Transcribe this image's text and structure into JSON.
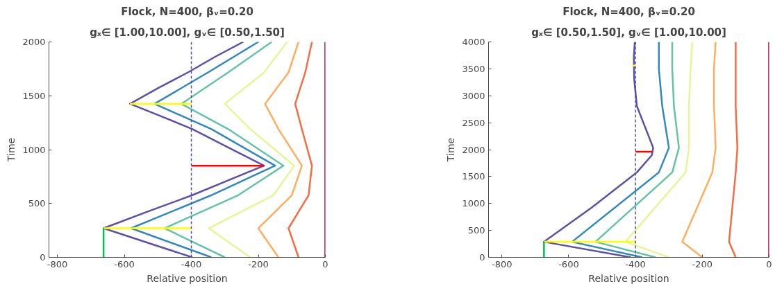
{
  "chart_data": [
    {
      "type": "line",
      "title": "Flock, N=400, βᵥ=0.20",
      "subtitle": "gₓ∈ [1.00,10.00], gᵥ∈ [0.50,1.50]",
      "xlabel": "Relative position",
      "ylabel": "Time",
      "xlim": [
        -825,
        0
      ],
      "ylim": [
        0,
        2000
      ],
      "xticks": [
        -800,
        -600,
        -400,
        -200,
        0
      ],
      "yticks": [
        0,
        500,
        1000,
        1500,
        2000
      ],
      "grid": false,
      "line_style": "solid",
      "ref_lines": [
        {
          "axis": "x",
          "value": -400,
          "color": "#4a4fb0",
          "line_style": "dashed"
        }
      ],
      "series": [
        {
          "color": "#5e4fa2",
          "x": [
            -397,
            -530,
            -662,
            -530,
            -397,
            -290,
            -183,
            -290,
            -397,
            -490,
            -583,
            -500,
            -410,
            -330,
            -245
          ],
          "values": [
            0,
            135,
            270,
            425,
            577,
            715,
            851,
            1020,
            1191,
            1310,
            1425,
            1570,
            1717,
            1860,
            2000
          ]
        },
        {
          "color": "#3288bd",
          "x": [
            -340,
            -580,
            -340,
            -150,
            -340,
            -510,
            -350,
            -200
          ],
          "values": [
            0,
            270,
            577,
            851,
            1191,
            1425,
            1717,
            2000
          ]
        },
        {
          "color": "#66c2a5",
          "x": [
            -300,
            -480,
            -260,
            -125,
            -290,
            -430,
            -290,
            -160
          ],
          "values": [
            0,
            270,
            577,
            851,
            1191,
            1425,
            1717,
            2000
          ]
        },
        {
          "color": "#e6f598",
          "x": [
            -224,
            -348,
            -155,
            -93,
            -224,
            -300,
            -183,
            -114
          ],
          "values": [
            0,
            270,
            577,
            851,
            1191,
            1425,
            1717,
            2000
          ]
        },
        {
          "color": "#fdae61",
          "x": [
            -140,
            -200,
            -100,
            -70,
            -140,
            -180,
            -110,
            -80
          ],
          "values": [
            0,
            270,
            577,
            851,
            1191,
            1425,
            1717,
            2000
          ]
        },
        {
          "color": "#f46d43",
          "x": [
            -80,
            -110,
            -50,
            -40,
            -70,
            -90,
            -60,
            -40
          ],
          "values": [
            0,
            270,
            577,
            851,
            1191,
            1425,
            1717,
            2000
          ]
        },
        {
          "color": "#9e0142",
          "x": [
            0,
            0
          ],
          "values": [
            0,
            2000
          ]
        },
        {
          "color": "#ffff00",
          "x": [
            -400,
            -583
          ],
          "values": [
            1425,
            1425
          ]
        },
        {
          "color": "#ffff00",
          "x": [
            -400,
            -662
          ],
          "values": [
            270,
            270
          ]
        },
        {
          "color": "#ff0000",
          "x": [
            -400,
            -183
          ],
          "values": [
            851,
            851
          ]
        },
        {
          "color": "#00c050",
          "x": [
            -662,
            -662
          ],
          "values": [
            0,
            270
          ]
        }
      ]
    },
    {
      "type": "line",
      "title": "Flock, N=400, βᵥ=0.20",
      "subtitle": "gₓ∈ [0.50,1.50], gᵥ∈ [1.00,10.00]",
      "xlabel": "Relative position",
      "ylabel": "Time",
      "xlim": [
        -840,
        0
      ],
      "ylim": [
        0,
        4000
      ],
      "xticks": [
        -800,
        -600,
        -400,
        -200,
        0
      ],
      "yticks": [
        0,
        500,
        1000,
        1500,
        2000,
        2500,
        3000,
        3500,
        4000
      ],
      "grid": false,
      "line_style": "solid",
      "ref_lines": [
        {
          "axis": "x",
          "value": -400,
          "color": "#4a4fb0",
          "line_style": "dashed"
        }
      ],
      "series": [
        {
          "color": "#5e4fa2",
          "x": [
            -414,
            -674,
            -530,
            -396,
            -351,
            -347,
            -396,
            -404,
            -405,
            -402
          ],
          "values": [
            0,
            288,
            930,
            1577,
            1897,
            2034,
            2811,
            3314,
            3725,
            4000
          ]
        },
        {
          "color": "#3288bd",
          "x": [
            -380,
            -590,
            -330,
            -300,
            -320,
            -330,
            -330
          ],
          "values": [
            0,
            288,
            1577,
            2034,
            2811,
            3500,
            4000
          ]
        },
        {
          "color": "#66c2a5",
          "x": [
            -340,
            -520,
            -290,
            -270,
            -285,
            -290,
            -290
          ],
          "values": [
            0,
            288,
            1577,
            2034,
            2811,
            3500,
            4000
          ]
        },
        {
          "color": "#e6f598",
          "x": [
            -300,
            -430,
            -250,
            -240,
            -240,
            -235,
            -230
          ],
          "values": [
            0,
            288,
            1577,
            2034,
            2811,
            3500,
            4000
          ]
        },
        {
          "color": "#fdae61",
          "x": [
            -200,
            -260,
            -170,
            -160,
            -165,
            -165,
            -160
          ],
          "values": [
            0,
            288,
            1577,
            2034,
            2811,
            3500,
            4000
          ]
        },
        {
          "color": "#f46d43",
          "x": [
            -100,
            -120,
            -100,
            -95,
            -100,
            -100,
            -100
          ],
          "values": [
            0,
            288,
            1577,
            2034,
            2811,
            3500,
            4000
          ]
        },
        {
          "color": "#9e0142",
          "x": [
            0,
            0
          ],
          "values": [
            0,
            4000
          ]
        },
        {
          "color": "#ffff00",
          "x": [
            -400,
            -674
          ],
          "values": [
            288,
            288
          ]
        },
        {
          "color": "#ff0000",
          "x": [
            -400,
            -350
          ],
          "values": [
            1960,
            1960
          ]
        },
        {
          "color": "#00c050",
          "x": [
            -674,
            -674
          ],
          "values": [
            0,
            288
          ]
        },
        {
          "color": "#ffff00",
          "x": [
            -410,
            -400
          ],
          "values": [
            3560,
            3560
          ]
        }
      ]
    }
  ]
}
